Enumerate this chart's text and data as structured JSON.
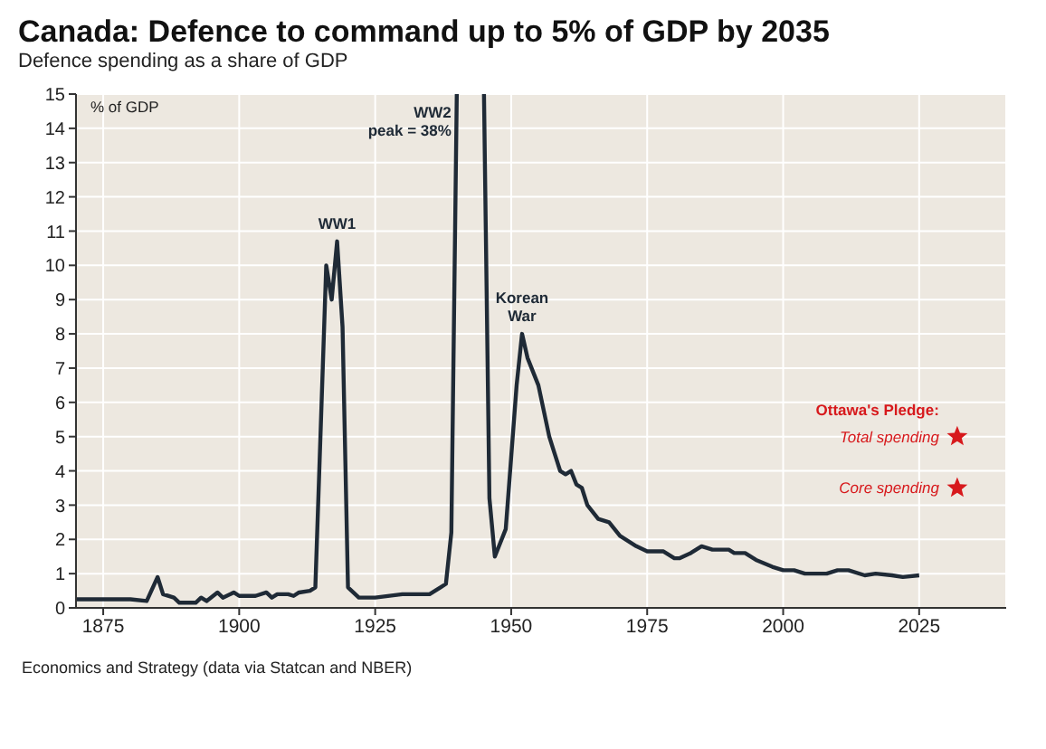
{
  "chart_data": {
    "type": "line",
    "title": "Canada: Defence to command up to 5% of GDP by 2035",
    "subtitle": "Defence spending as a share of GDP",
    "ylabel": "% of GDP",
    "xlim": [
      1870,
      2041
    ],
    "xticks": [
      1875,
      1900,
      1925,
      1950,
      1975,
      2000,
      2025
    ],
    "ylim": [
      0,
      15
    ],
    "yticks": [
      0,
      1,
      2,
      3,
      4,
      5,
      6,
      7,
      8,
      9,
      10,
      11,
      12,
      13,
      14,
      15
    ],
    "grid": true,
    "series": [
      {
        "color": "#1f2a36",
        "marker": "none",
        "line_style": "solid",
        "x": [
          1870,
          1875,
          1880,
          1883,
          1885,
          1886,
          1888,
          1889,
          1892,
          1893,
          1894,
          1896,
          1897,
          1899,
          1900,
          1903,
          1905,
          1906,
          1907,
          1909,
          1910,
          1911,
          1913,
          1914,
          1916,
          1917,
          1918,
          1919,
          1920,
          1922,
          1925,
          1930,
          1935,
          1937,
          1938,
          1939,
          1940,
          1941,
          1942,
          1943,
          1944,
          1945,
          1946,
          1947,
          1949,
          1951,
          1952,
          1953,
          1955,
          1957,
          1958,
          1959,
          1960,
          1961,
          1962,
          1963,
          1964,
          1966,
          1968,
          1970,
          1973,
          1975,
          1978,
          1980,
          1981,
          1983,
          1985,
          1987,
          1990,
          1991,
          1993,
          1995,
          1998,
          2000,
          2002,
          2004,
          2008,
          2010,
          2012,
          2015,
          2017,
          2020,
          2022,
          2025
        ],
        "values": [
          0.25,
          0.25,
          0.25,
          0.2,
          0.9,
          0.4,
          0.3,
          0.15,
          0.15,
          0.3,
          0.2,
          0.45,
          0.3,
          0.45,
          0.35,
          0.35,
          0.45,
          0.3,
          0.4,
          0.4,
          0.35,
          0.45,
          0.5,
          0.6,
          10.0,
          9.0,
          10.7,
          8.2,
          0.6,
          0.3,
          0.3,
          0.4,
          0.4,
          0.6,
          0.7,
          2.2,
          15,
          null,
          null,
          null,
          null,
          15,
          3.2,
          1.5,
          2.3,
          6.5,
          8.0,
          7.3,
          6.5,
          5.0,
          4.5,
          4.0,
          3.9,
          4.0,
          3.6,
          3.5,
          3.0,
          2.6,
          2.5,
          2.1,
          1.8,
          1.65,
          1.65,
          1.45,
          1.45,
          1.6,
          1.8,
          1.7,
          1.7,
          1.6,
          1.6,
          1.4,
          1.2,
          1.1,
          1.1,
          1.0,
          1.0,
          1.1,
          1.1,
          0.95,
          1.0,
          0.95,
          0.9,
          0.95
        ]
      },
      {
        "type": "scatter",
        "color": "#d7191c",
        "marker": "star",
        "x": [
          2032,
          2032
        ],
        "values": [
          5,
          3.5
        ]
      }
    ],
    "annotations": [
      {
        "text": "WW1",
        "x": 1918,
        "y": 10.7
      },
      {
        "text": "WW2",
        "x": 1940,
        "y": 15
      },
      {
        "text": "peak = 38%",
        "x": 1940,
        "y": 15
      },
      {
        "text": "Korean",
        "x": 1952,
        "y": 8
      },
      {
        "text": "War",
        "x": 1952,
        "y": 8
      },
      {
        "text": "Ottawa's Pledge:",
        "x": 2032,
        "y": 5
      },
      {
        "text": "Total spending",
        "x": 2032,
        "y": 5
      },
      {
        "text": "Core spending",
        "x": 2032,
        "y": 3.5
      },
      "Economics and Strategy (data via Statcan and NBER)"
    ]
  }
}
